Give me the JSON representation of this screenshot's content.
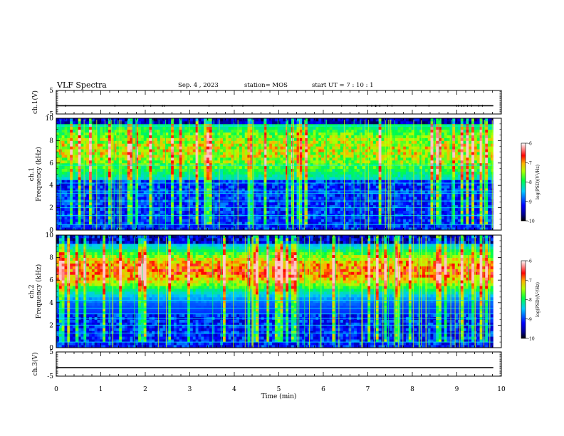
{
  "header": {
    "title": "VLF  Spectra",
    "date": "Sep. 4  , 2023",
    "station": "station= MOS",
    "start_ut": "start  UT  =   7 : 10 : 1"
  },
  "chart_data": [
    {
      "type": "line",
      "panel": "ch1-waveform",
      "ylabel": "ch.1(V)",
      "ylim": [
        -5,
        5
      ],
      "yticks": [
        "5",
        "-5"
      ],
      "xlim": [
        0,
        10
      ],
      "series": [
        {
          "x": [
            0,
            9.82
          ],
          "y": [
            -1.5,
            -1.5
          ]
        }
      ],
      "color": "#000000"
    },
    {
      "type": "heatmap",
      "panel": "ch1-spectrogram",
      "ylabel": "ch.1\nFrequency (kHz)",
      "ylim": [
        0,
        10
      ],
      "yticks": [
        "0",
        "2",
        "4",
        "6",
        "8",
        "10"
      ],
      "xlim": [
        0,
        10
      ],
      "data_end_min": 9.82,
      "colorbar": {
        "label": "log(PSD)(V²/Hz)",
        "range": [
          -10,
          -6
        ],
        "ticks": [
          "-6",
          "-7",
          "-8",
          "-9",
          "-10"
        ]
      },
      "bands_khz": [
        0.5,
        1.3,
        2.0,
        2.6,
        3.3,
        3.5,
        4.2,
        5.8,
        9.3
      ]
    },
    {
      "type": "heatmap",
      "panel": "ch2-spectrogram",
      "ylabel": "ch.2\nFrequency (kHz)",
      "ylim": [
        0,
        10
      ],
      "yticks": [
        "0",
        "2",
        "4",
        "6",
        "8",
        "10"
      ],
      "xlim": [
        0,
        10
      ],
      "data_end_min": 9.82,
      "colorbar": {
        "label": "log(PSD)(V²/Hz)",
        "range": [
          -10,
          -6
        ],
        "ticks": [
          "-6",
          "-7",
          "-8",
          "-9",
          "-10"
        ]
      },
      "bands_khz": [
        0.5,
        1.3,
        2.0,
        2.6,
        3.0,
        3.5,
        4.2
      ]
    },
    {
      "type": "line",
      "panel": "ch3-waveform",
      "ylabel": "ch.3(V)",
      "ylim": [
        -5,
        5
      ],
      "yticks": [
        "5",
        "-5"
      ],
      "xlim": [
        0,
        10
      ],
      "series": [
        {
          "x": [
            0,
            9.82
          ],
          "y": [
            -1.5,
            -1.5
          ]
        }
      ],
      "color": "#000000"
    }
  ],
  "x_axis": {
    "label": "Time  (min)",
    "ticks": [
      "0",
      "1",
      "2",
      "3",
      "4",
      "5",
      "6",
      "7",
      "8",
      "9",
      "10"
    ]
  }
}
